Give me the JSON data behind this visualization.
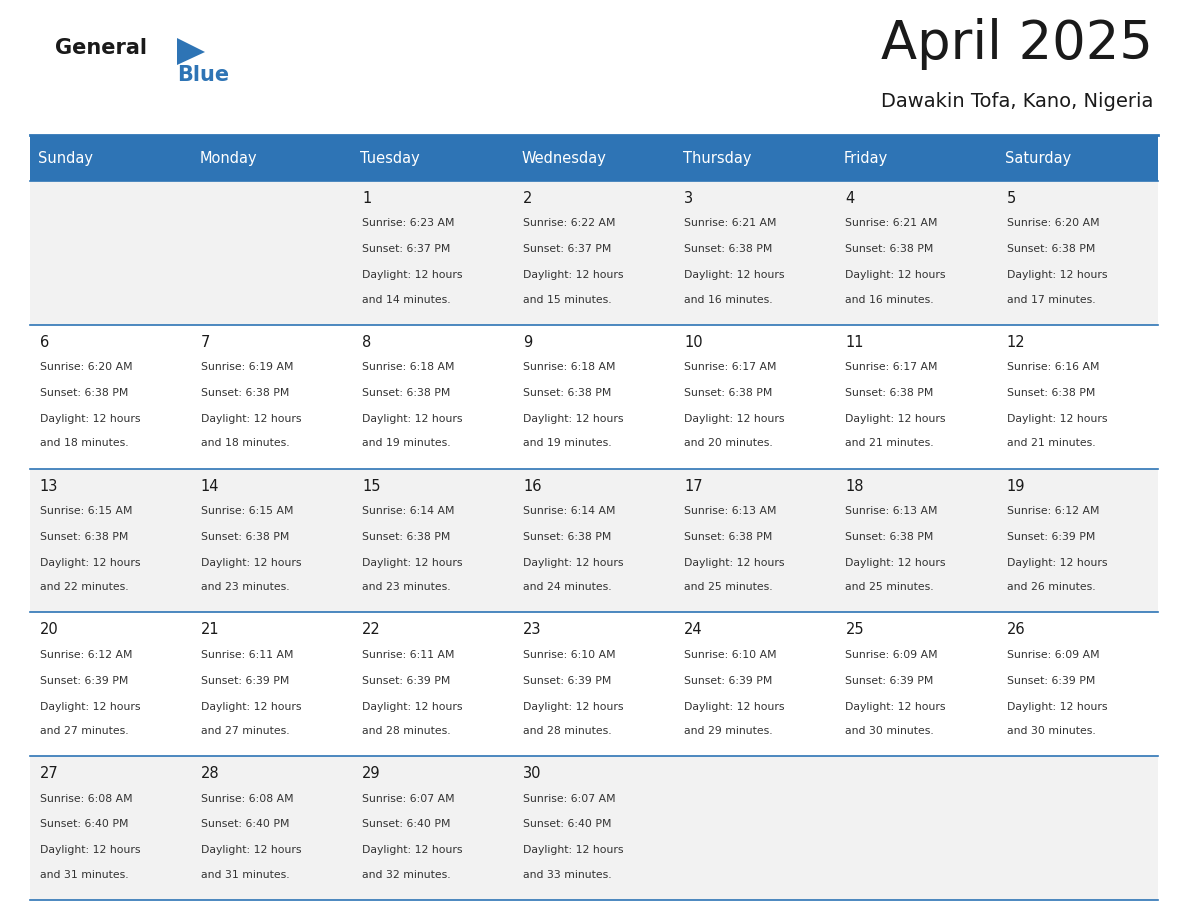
{
  "title": "April 2025",
  "subtitle": "Dawakin Tofa, Kano, Nigeria",
  "header_bg": "#2E74B5",
  "header_text_color": "#FFFFFF",
  "row_bg_light": "#F2F2F2",
  "row_bg_white": "#FFFFFF",
  "cell_border_color": "#2E74B5",
  "day_headers": [
    "Sunday",
    "Monday",
    "Tuesday",
    "Wednesday",
    "Thursday",
    "Friday",
    "Saturday"
  ],
  "calendar": [
    [
      {
        "day": "",
        "sunrise": "",
        "sunset": "",
        "daylight": ""
      },
      {
        "day": "",
        "sunrise": "",
        "sunset": "",
        "daylight": ""
      },
      {
        "day": "1",
        "sunrise": "Sunrise: 6:23 AM",
        "sunset": "Sunset: 6:37 PM",
        "daylight": "Daylight: 12 hours\nand 14 minutes."
      },
      {
        "day": "2",
        "sunrise": "Sunrise: 6:22 AM",
        "sunset": "Sunset: 6:37 PM",
        "daylight": "Daylight: 12 hours\nand 15 minutes."
      },
      {
        "day": "3",
        "sunrise": "Sunrise: 6:21 AM",
        "sunset": "Sunset: 6:38 PM",
        "daylight": "Daylight: 12 hours\nand 16 minutes."
      },
      {
        "day": "4",
        "sunrise": "Sunrise: 6:21 AM",
        "sunset": "Sunset: 6:38 PM",
        "daylight": "Daylight: 12 hours\nand 16 minutes."
      },
      {
        "day": "5",
        "sunrise": "Sunrise: 6:20 AM",
        "sunset": "Sunset: 6:38 PM",
        "daylight": "Daylight: 12 hours\nand 17 minutes."
      }
    ],
    [
      {
        "day": "6",
        "sunrise": "Sunrise: 6:20 AM",
        "sunset": "Sunset: 6:38 PM",
        "daylight": "Daylight: 12 hours\nand 18 minutes."
      },
      {
        "day": "7",
        "sunrise": "Sunrise: 6:19 AM",
        "sunset": "Sunset: 6:38 PM",
        "daylight": "Daylight: 12 hours\nand 18 minutes."
      },
      {
        "day": "8",
        "sunrise": "Sunrise: 6:18 AM",
        "sunset": "Sunset: 6:38 PM",
        "daylight": "Daylight: 12 hours\nand 19 minutes."
      },
      {
        "day": "9",
        "sunrise": "Sunrise: 6:18 AM",
        "sunset": "Sunset: 6:38 PM",
        "daylight": "Daylight: 12 hours\nand 19 minutes."
      },
      {
        "day": "10",
        "sunrise": "Sunrise: 6:17 AM",
        "sunset": "Sunset: 6:38 PM",
        "daylight": "Daylight: 12 hours\nand 20 minutes."
      },
      {
        "day": "11",
        "sunrise": "Sunrise: 6:17 AM",
        "sunset": "Sunset: 6:38 PM",
        "daylight": "Daylight: 12 hours\nand 21 minutes."
      },
      {
        "day": "12",
        "sunrise": "Sunrise: 6:16 AM",
        "sunset": "Sunset: 6:38 PM",
        "daylight": "Daylight: 12 hours\nand 21 minutes."
      }
    ],
    [
      {
        "day": "13",
        "sunrise": "Sunrise: 6:15 AM",
        "sunset": "Sunset: 6:38 PM",
        "daylight": "Daylight: 12 hours\nand 22 minutes."
      },
      {
        "day": "14",
        "sunrise": "Sunrise: 6:15 AM",
        "sunset": "Sunset: 6:38 PM",
        "daylight": "Daylight: 12 hours\nand 23 minutes."
      },
      {
        "day": "15",
        "sunrise": "Sunrise: 6:14 AM",
        "sunset": "Sunset: 6:38 PM",
        "daylight": "Daylight: 12 hours\nand 23 minutes."
      },
      {
        "day": "16",
        "sunrise": "Sunrise: 6:14 AM",
        "sunset": "Sunset: 6:38 PM",
        "daylight": "Daylight: 12 hours\nand 24 minutes."
      },
      {
        "day": "17",
        "sunrise": "Sunrise: 6:13 AM",
        "sunset": "Sunset: 6:38 PM",
        "daylight": "Daylight: 12 hours\nand 25 minutes."
      },
      {
        "day": "18",
        "sunrise": "Sunrise: 6:13 AM",
        "sunset": "Sunset: 6:38 PM",
        "daylight": "Daylight: 12 hours\nand 25 minutes."
      },
      {
        "day": "19",
        "sunrise": "Sunrise: 6:12 AM",
        "sunset": "Sunset: 6:39 PM",
        "daylight": "Daylight: 12 hours\nand 26 minutes."
      }
    ],
    [
      {
        "day": "20",
        "sunrise": "Sunrise: 6:12 AM",
        "sunset": "Sunset: 6:39 PM",
        "daylight": "Daylight: 12 hours\nand 27 minutes."
      },
      {
        "day": "21",
        "sunrise": "Sunrise: 6:11 AM",
        "sunset": "Sunset: 6:39 PM",
        "daylight": "Daylight: 12 hours\nand 27 minutes."
      },
      {
        "day": "22",
        "sunrise": "Sunrise: 6:11 AM",
        "sunset": "Sunset: 6:39 PM",
        "daylight": "Daylight: 12 hours\nand 28 minutes."
      },
      {
        "day": "23",
        "sunrise": "Sunrise: 6:10 AM",
        "sunset": "Sunset: 6:39 PM",
        "daylight": "Daylight: 12 hours\nand 28 minutes."
      },
      {
        "day": "24",
        "sunrise": "Sunrise: 6:10 AM",
        "sunset": "Sunset: 6:39 PM",
        "daylight": "Daylight: 12 hours\nand 29 minutes."
      },
      {
        "day": "25",
        "sunrise": "Sunrise: 6:09 AM",
        "sunset": "Sunset: 6:39 PM",
        "daylight": "Daylight: 12 hours\nand 30 minutes."
      },
      {
        "day": "26",
        "sunrise": "Sunrise: 6:09 AM",
        "sunset": "Sunset: 6:39 PM",
        "daylight": "Daylight: 12 hours\nand 30 minutes."
      }
    ],
    [
      {
        "day": "27",
        "sunrise": "Sunrise: 6:08 AM",
        "sunset": "Sunset: 6:40 PM",
        "daylight": "Daylight: 12 hours\nand 31 minutes."
      },
      {
        "day": "28",
        "sunrise": "Sunrise: 6:08 AM",
        "sunset": "Sunset: 6:40 PM",
        "daylight": "Daylight: 12 hours\nand 31 minutes."
      },
      {
        "day": "29",
        "sunrise": "Sunrise: 6:07 AM",
        "sunset": "Sunset: 6:40 PM",
        "daylight": "Daylight: 12 hours\nand 32 minutes."
      },
      {
        "day": "30",
        "sunrise": "Sunrise: 6:07 AM",
        "sunset": "Sunset: 6:40 PM",
        "daylight": "Daylight: 12 hours\nand 33 minutes."
      },
      {
        "day": "",
        "sunrise": "",
        "sunset": "",
        "daylight": ""
      },
      {
        "day": "",
        "sunrise": "",
        "sunset": "",
        "daylight": ""
      },
      {
        "day": "",
        "sunrise": "",
        "sunset": "",
        "daylight": ""
      }
    ]
  ]
}
